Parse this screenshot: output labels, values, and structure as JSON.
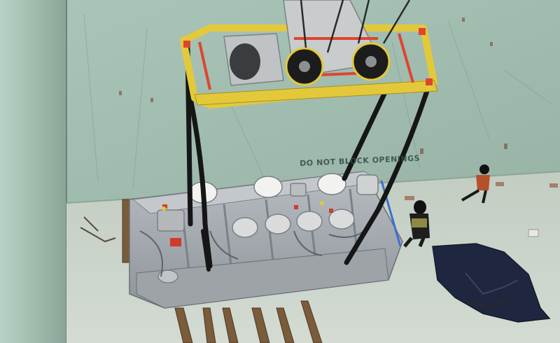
{
  "photo": {
    "wall_stencil_text": "DO NOT BLOCK OPENINGS"
  },
  "colors": {
    "hold_wall": "#a8c4b6",
    "hold_floor": "#c9d3c9",
    "transformer_body": "#a8adb2",
    "spreader_yellow": "#e3c93a",
    "sling_black": "#161616",
    "tarp_navy": "#1f2740"
  }
}
